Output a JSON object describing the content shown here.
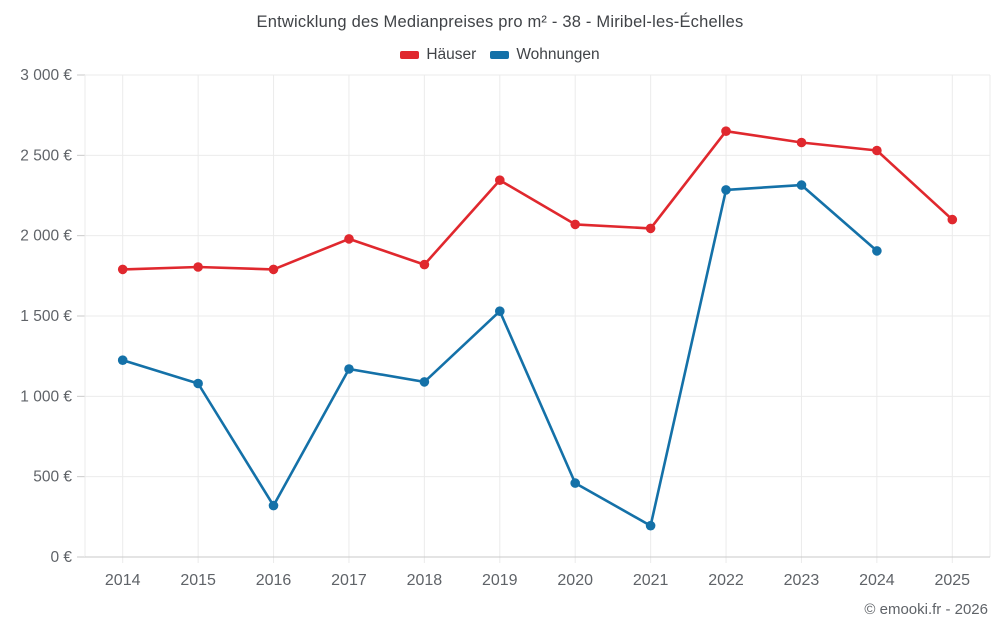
{
  "header": {
    "title": "Entwicklung des Medianpreises pro m² - 38 - Miribel-les-Échelles"
  },
  "footer": {
    "credit": "© emooki.fr - 2026"
  },
  "colors": {
    "background": "#ffffff",
    "title_text": "#404347",
    "tick_text": "#5f6368",
    "grid": "#ebebeb",
    "axis": "#c9c9c9",
    "hauser_red": "#e0282e",
    "wohnungen_blue": "#1471a8"
  },
  "chart_data": {
    "type": "line",
    "title": "Entwicklung des Medianpreises pro m² - 38 - Miribel-les-Échelles",
    "xlabel": "",
    "ylabel": "",
    "categories": [
      "2014",
      "2015",
      "2016",
      "2017",
      "2018",
      "2019",
      "2020",
      "2021",
      "2022",
      "2023",
      "2024",
      "2025"
    ],
    "series": [
      {
        "name": "Häuser",
        "color": "#e0282e",
        "values": [
          1790,
          1805,
          1790,
          1980,
          1820,
          2345,
          2070,
          2045,
          2650,
          2580,
          2530,
          2100
        ]
      },
      {
        "name": "Wohnungen",
        "color": "#1471a8",
        "values": [
          1225,
          1080,
          320,
          1170,
          1090,
          1530,
          460,
          195,
          2285,
          2315,
          1905,
          null
        ]
      }
    ],
    "ylim": [
      0,
      3000
    ],
    "ytick_step": 500,
    "ytick_labels": [
      "0 €",
      "500 €",
      "1 000 €",
      "1 500 €",
      "2 000 €",
      "2 500 €",
      "3 000 €"
    ],
    "grid": true,
    "legend_position": "top"
  }
}
